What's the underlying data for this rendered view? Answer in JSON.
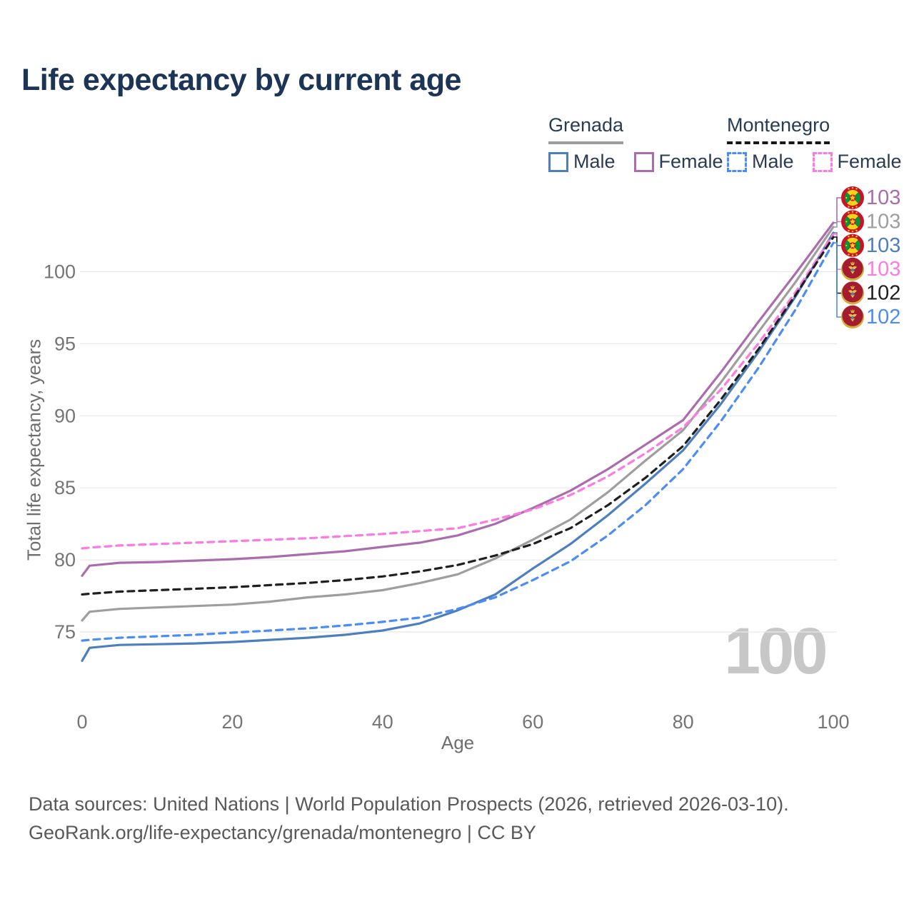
{
  "title": "Life expectancy by current age",
  "legend": {
    "groups": [
      {
        "name": "Grenada",
        "line_style": "solid",
        "underline_color": "#9e9e9e",
        "items": [
          {
            "label": "Male",
            "color": "#4d7ebd",
            "dashed": false
          },
          {
            "label": "Female",
            "color": "#ab6cae",
            "dashed": false
          }
        ]
      },
      {
        "name": "Montenegro",
        "line_style": "dashed",
        "underline_color": "#161616",
        "items": [
          {
            "label": "Male",
            "color": "#4b8cf7",
            "dashed": true
          },
          {
            "label": "Female",
            "color": "#fb7be0",
            "dashed": true
          }
        ]
      }
    ]
  },
  "watermark": "100",
  "footer": {
    "line1": "Data sources: United Nations | World Population Prospects (2026, retrieved 2026-03-10).",
    "line2": "GeoRank.org/life-expectancy/grenada/montenegro | CC BY"
  },
  "chart_data": {
    "type": "line",
    "title": "Life expectancy by current age",
    "xlabel": "Age",
    "ylabel": "Total life expectancy, years",
    "xlim": [
      0,
      100
    ],
    "ylim": [
      72,
      104.5
    ],
    "xticks": [
      0,
      20,
      40,
      60,
      80,
      100
    ],
    "yticks": [
      75,
      80,
      85,
      90,
      95,
      100
    ],
    "grid": "horizontal",
    "legend_position": "top-right",
    "tick_color": "#757575",
    "grid_color": "#e8e8e8",
    "x": [
      0,
      1,
      5,
      10,
      15,
      20,
      25,
      30,
      35,
      40,
      45,
      50,
      55,
      60,
      65,
      70,
      75,
      80,
      85,
      90,
      95,
      100
    ],
    "series": [
      {
        "name": "Grenada Female",
        "country": "Grenada",
        "sex": "Female",
        "color": "#ab6cae",
        "dashed": false,
        "flag": "grenada",
        "end_label": "103",
        "values": [
          78.9,
          79.6,
          79.8,
          79.85,
          79.95,
          80.05,
          80.2,
          80.4,
          80.6,
          80.9,
          81.2,
          81.7,
          82.5,
          83.6,
          84.8,
          86.3,
          88.0,
          89.7,
          93.0,
          96.5,
          99.9,
          103.4
        ]
      },
      {
        "name": "Grenada Total",
        "country": "Grenada",
        "sex": "Total",
        "color": "#9e9e9e",
        "dashed": false,
        "flag": "grenada",
        "end_label": "103",
        "values": [
          75.8,
          76.4,
          76.6,
          76.7,
          76.8,
          76.9,
          77.1,
          77.4,
          77.6,
          77.9,
          78.4,
          79.0,
          80.1,
          81.4,
          82.8,
          84.7,
          86.9,
          89.0,
          92.3,
          95.8,
          99.3,
          103.1
        ]
      },
      {
        "name": "Grenada Male",
        "country": "Grenada",
        "sex": "Male",
        "color": "#4d7ebd",
        "dashed": false,
        "flag": "grenada",
        "end_label": "103",
        "values": [
          73.0,
          73.9,
          74.1,
          74.15,
          74.2,
          74.3,
          74.45,
          74.6,
          74.8,
          75.1,
          75.6,
          76.5,
          77.6,
          79.4,
          81.1,
          83.1,
          85.3,
          87.6,
          90.8,
          94.4,
          98.3,
          102.7
        ]
      },
      {
        "name": "Montenegro Female",
        "country": "Montenegro",
        "sex": "Female",
        "color": "#fb7be0",
        "dashed": true,
        "flag": "montenegro",
        "end_label": "103",
        "values": [
          80.8,
          80.85,
          81.0,
          81.1,
          81.2,
          81.3,
          81.4,
          81.5,
          81.65,
          81.8,
          82.0,
          82.2,
          82.8,
          83.5,
          84.5,
          85.8,
          87.4,
          89.2,
          91.8,
          95.0,
          98.6,
          102.6
        ]
      },
      {
        "name": "Montenegro Total",
        "country": "Montenegro",
        "sex": "Total",
        "color": "#1f1f1f",
        "dashed": true,
        "flag": "montenegro",
        "end_label": "102",
        "values": [
          77.6,
          77.65,
          77.8,
          77.9,
          78.0,
          78.1,
          78.25,
          78.4,
          78.6,
          78.85,
          79.2,
          79.65,
          80.3,
          81.1,
          82.2,
          83.8,
          85.7,
          87.9,
          91.1,
          94.6,
          98.4,
          102.4
        ]
      },
      {
        "name": "Montenegro Male",
        "country": "Montenegro",
        "sex": "Male",
        "color": "#4b8cf7",
        "dashed": true,
        "flag": "montenegro",
        "end_label": "102",
        "values": [
          74.4,
          74.45,
          74.6,
          74.7,
          74.8,
          74.95,
          75.1,
          75.25,
          75.45,
          75.7,
          76.0,
          76.6,
          77.4,
          78.6,
          79.9,
          81.7,
          83.8,
          86.3,
          89.6,
          93.3,
          97.4,
          102.0
        ]
      }
    ]
  }
}
